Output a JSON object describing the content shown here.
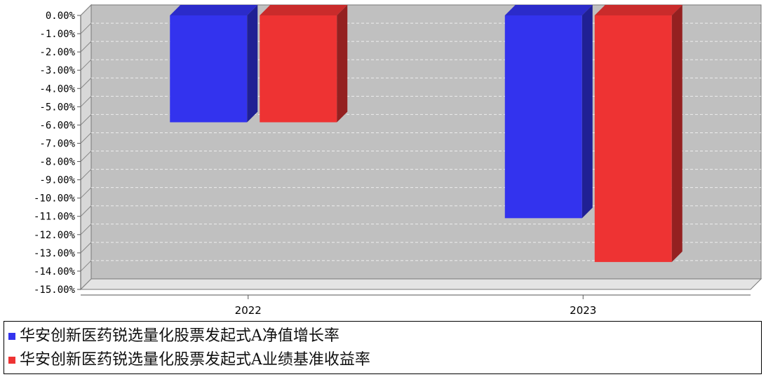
{
  "chart_data": {
    "type": "bar",
    "categories": [
      "2022",
      "2023"
    ],
    "series": [
      {
        "name": "华安创新医药锐选量化股票发起式A净值增长率",
        "values": [
          -5.85,
          -11.1
        ],
        "color": "#3333ee"
      },
      {
        "name": "华安创新医药锐选量化股票发起式A业绩基准收益率",
        "values": [
          -5.85,
          -13.5
        ],
        "color": "#ee3333"
      }
    ],
    "ylim": [
      -15,
      0
    ],
    "yticks": [
      "0.00%",
      "-1.00%",
      "-2.00%",
      "-3.00%",
      "-4.00%",
      "-5.00%",
      "-6.00%",
      "-7.00%",
      "-8.00%",
      "-9.00%",
      "-10.00%",
      "-11.00%",
      "-12.00%",
      "-13.00%",
      "-14.00%",
      "-15.00%"
    ],
    "grid": true,
    "style": "3d",
    "legend_position": "bottom"
  }
}
